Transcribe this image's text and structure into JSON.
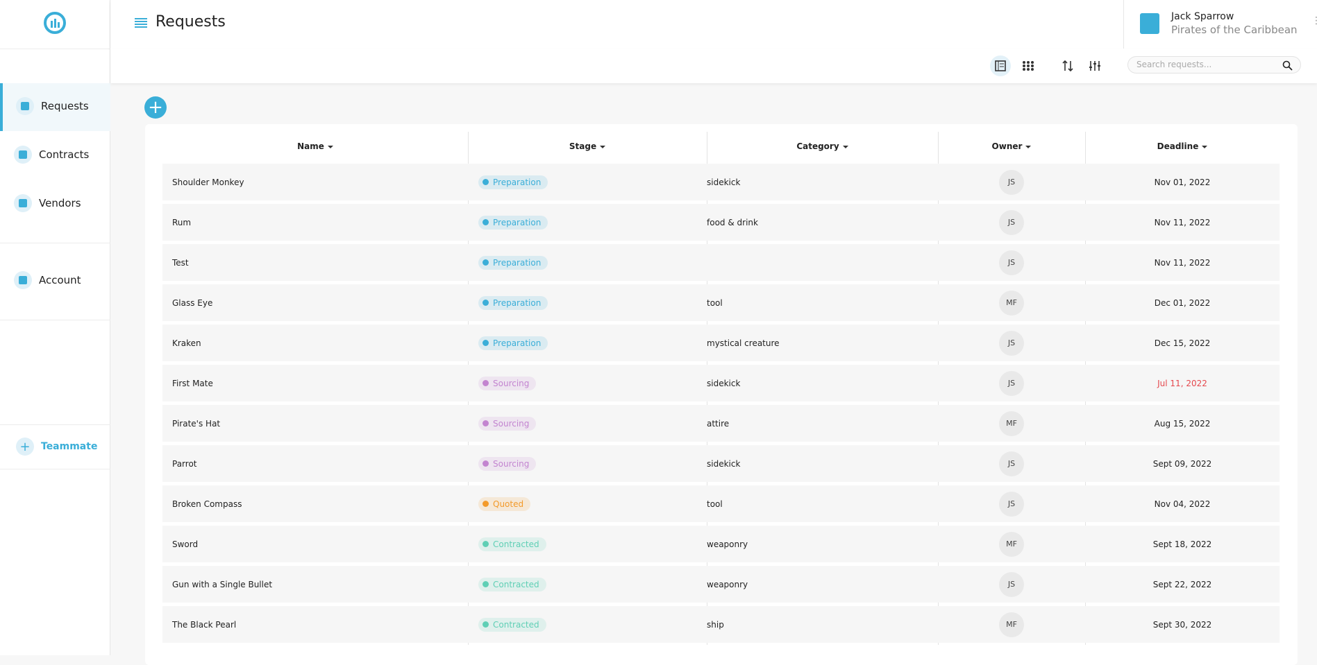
{
  "header": {
    "title": "Requests",
    "user": {
      "name": "Jack Sparrow",
      "organization": "Pirates of the Caribbean"
    }
  },
  "sidebar": {
    "items": [
      "Requests",
      "Contracts",
      "Vendors",
      "Account"
    ],
    "active": "Requests",
    "add_teammate": "Teammate"
  },
  "toolbar": {
    "search_placeholder": "Search requests..."
  },
  "stage_colors": {
    "Preparation": "#3aaed8",
    "Sourcing": "#c384d0",
    "Quoted": "#f39a2a",
    "Contracted": "#5fcfb5"
  },
  "table": {
    "columns": [
      "Name",
      "Stage",
      "Category",
      "Owner",
      "Deadline"
    ],
    "rows": [
      {
        "name": "Shoulder Monkey",
        "stage": "Preparation",
        "category": "sidekick",
        "owner": "JS",
        "deadline": "Nov 01, 2022"
      },
      {
        "name": "Rum",
        "stage": "Preparation",
        "category": "food & drink",
        "owner": "JS",
        "deadline": "Nov 11, 2022"
      },
      {
        "name": "Test",
        "stage": "Preparation",
        "category": null,
        "owner": "JS",
        "deadline": "Nov 11, 2022"
      },
      {
        "name": "Glass Eye",
        "stage": "Preparation",
        "category": "tool",
        "owner": "MF",
        "deadline": "Dec 01, 2022"
      },
      {
        "name": "Kraken",
        "stage": "Preparation",
        "category": "mystical creature",
        "owner": "JS",
        "deadline": "Dec 15, 2022"
      },
      {
        "name": "First Mate",
        "stage": "Sourcing",
        "category": "sidekick",
        "owner": "JS",
        "deadline": "Jul 11, 2022",
        "overdue": true
      },
      {
        "name": "Pirate's Hat",
        "stage": "Sourcing",
        "category": "attire",
        "owner": "MF",
        "deadline": "Aug 15, 2022"
      },
      {
        "name": "Parrot",
        "stage": "Sourcing",
        "category": "sidekick",
        "owner": "JS",
        "deadline": "Sept 09, 2022"
      },
      {
        "name": "Broken Compass",
        "stage": "Quoted",
        "category": "tool",
        "owner": "JS",
        "deadline": "Nov 04, 2022"
      },
      {
        "name": "Sword",
        "stage": "Contracted",
        "category": "weaponry",
        "owner": "MF",
        "deadline": "Sept 18, 2022"
      },
      {
        "name": "Gun with a Single Bullet",
        "stage": "Contracted",
        "category": "weaponry",
        "owner": "JS",
        "deadline": "Sept 22, 2022"
      },
      {
        "name": "The Black Pearl",
        "stage": "Contracted",
        "category": "ship",
        "owner": "MF",
        "deadline": "Sept 30, 2022"
      }
    ]
  }
}
